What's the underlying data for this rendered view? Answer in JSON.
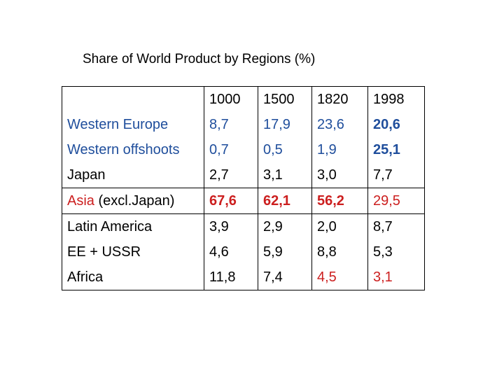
{
  "title": "Share of World Product by Regions (%)",
  "header": [
    "",
    "1000",
    "1500",
    "1820",
    "1998"
  ],
  "rows": [
    {
      "region": "Western Europe",
      "values": [
        "8,7",
        "17,9",
        "23,6",
        "20,6"
      ]
    },
    {
      "region": "Western offshoots",
      "values": [
        "0,7",
        "0,5",
        "1,9",
        "25,1"
      ]
    },
    {
      "region": "Japan",
      "values": [
        "2,7",
        "3,1",
        "3,0",
        "7,7"
      ]
    },
    {
      "region_part1": "Asia",
      "region_part2": " (excl.Japan)",
      "values": [
        "67,6",
        "62,1",
        "56,2",
        "29,5"
      ]
    },
    {
      "region": "Latin America",
      "values": [
        "3,9",
        "2,9",
        "2,0",
        "8,7"
      ]
    },
    {
      "region": "EE + USSR",
      "values": [
        "4,6",
        "5,9",
        "8,8",
        "5,3"
      ]
    },
    {
      "region": "Africa",
      "values": [
        "11,8",
        "7,4",
        "4,5",
        "3,1"
      ]
    }
  ],
  "colors": {
    "blue": "#1f4e9c",
    "red": "#cc1f1f"
  }
}
